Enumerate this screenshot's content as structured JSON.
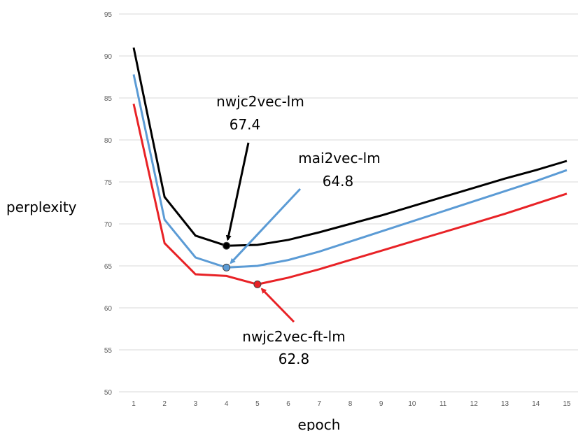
{
  "chart_data": {
    "type": "line",
    "x": [
      1,
      2,
      3,
      4,
      5,
      6,
      7,
      8,
      9,
      10,
      11,
      12,
      13,
      14,
      15
    ],
    "xlabel": "epoch",
    "ylabel": "perplexity",
    "xticks": [
      "1",
      "2",
      "3",
      "4",
      "5",
      "6",
      "7",
      "8",
      "9",
      "10",
      "11",
      "12",
      "13",
      "14",
      "15"
    ],
    "yticks": [
      "50",
      "55",
      "60",
      "65",
      "70",
      "75",
      "80",
      "85",
      "90",
      "95"
    ],
    "ylim": [
      50,
      95
    ],
    "grid": true,
    "legend": "none",
    "series": [
      {
        "name": "nwjc2vec-lm",
        "color": "#000000",
        "values": [
          91.0,
          73.2,
          68.6,
          67.4,
          67.5,
          68.1,
          69.0,
          70.0,
          71.0,
          72.1,
          73.2,
          74.3,
          75.4,
          76.4,
          77.5
        ]
      },
      {
        "name": "mai2vec-lm",
        "color": "#5B9BD5",
        "values": [
          87.8,
          70.5,
          66.0,
          64.8,
          65.0,
          65.7,
          66.7,
          67.9,
          69.1,
          70.3,
          71.5,
          72.7,
          73.9,
          75.1,
          76.4
        ]
      },
      {
        "name": "nwjc2vec-ft-lm",
        "color": "#E82226",
        "values": [
          84.3,
          67.7,
          64.0,
          63.8,
          62.8,
          63.6,
          64.6,
          65.7,
          66.8,
          67.9,
          69.0,
          70.1,
          71.2,
          72.4,
          73.6
        ]
      }
    ],
    "annotations": [
      {
        "series": "nwjc2vec-lm",
        "name": "nwjc2vec-lm",
        "value": "67.4",
        "x": 4,
        "y": 67.4,
        "color": "#000000"
      },
      {
        "series": "mai2vec-lm",
        "name": "mai2vec-lm",
        "value": "64.8",
        "x": 4,
        "y": 64.8,
        "color": "#5B9BD5"
      },
      {
        "series": "nwjc2vec-ft-lm",
        "name": "nwjc2vec-ft-lm",
        "value": "62.8",
        "x": 5,
        "y": 62.8,
        "color": "#E82226"
      }
    ]
  }
}
